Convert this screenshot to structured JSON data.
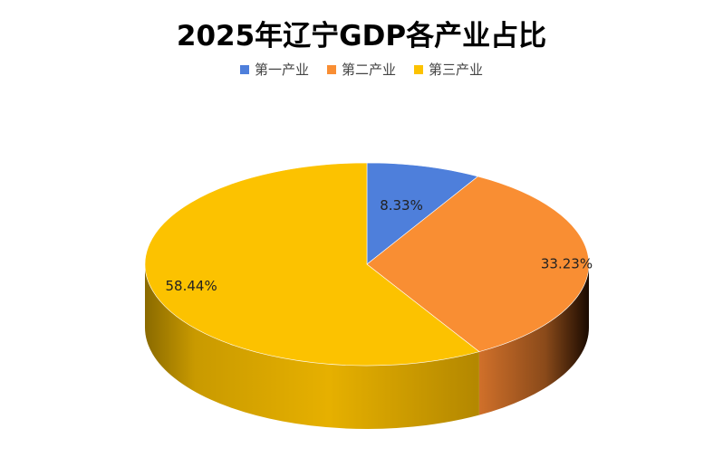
{
  "chart_data": {
    "type": "pie",
    "title": "2025年辽宁GDP各产业占比",
    "categories": [
      "第一产业",
      "第二产业",
      "第三产业"
    ],
    "values": [
      8.33,
      33.23,
      58.44
    ],
    "labels": [
      "8.33%",
      "33.23%",
      "58.44%"
    ],
    "colors": [
      "#4E7FDB",
      "#F98E33",
      "#FCC200"
    ],
    "legend_position": "top",
    "style": "3d"
  }
}
